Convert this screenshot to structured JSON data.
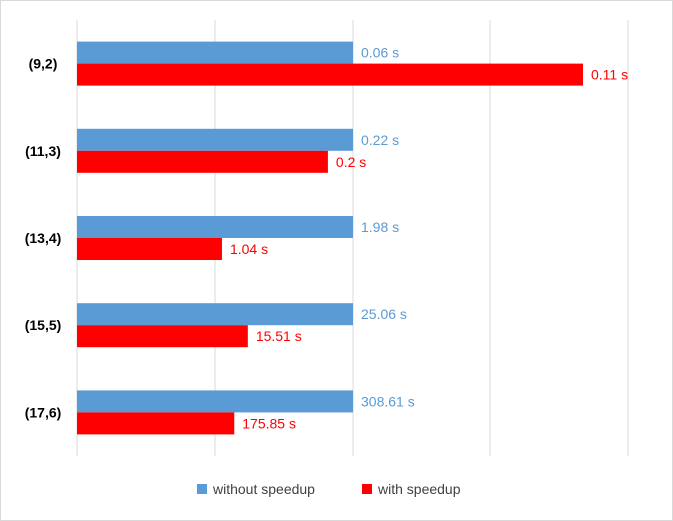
{
  "chart_data": {
    "type": "bar",
    "orientation": "horizontal",
    "categories": [
      "(9,2)",
      "(11,3)",
      "(13,4)",
      "(15,5)",
      "(17,6)"
    ],
    "series": [
      {
        "name": "without speedup",
        "color": "#5b9bd5",
        "values": [
          0.06,
          0.22,
          1.98,
          25.06,
          308.61
        ],
        "labels": [
          "0.06 s",
          "0.22 s",
          "1.98 s",
          "25.06 s",
          "308.61 s"
        ]
      },
      {
        "name": "with speedup",
        "color": "#ff0000",
        "values": [
          0.11,
          0.2,
          1.04,
          15.51,
          175.85
        ],
        "labels": [
          "0.11 s",
          "0.2 s",
          "1.04 s",
          "15.51 s",
          "175.85 s"
        ]
      }
    ],
    "bar_scaling": "relative to the without-speedup value of each category",
    "title": "",
    "xlabel": "",
    "ylabel": "",
    "grid": true,
    "legend_position": "bottom"
  }
}
